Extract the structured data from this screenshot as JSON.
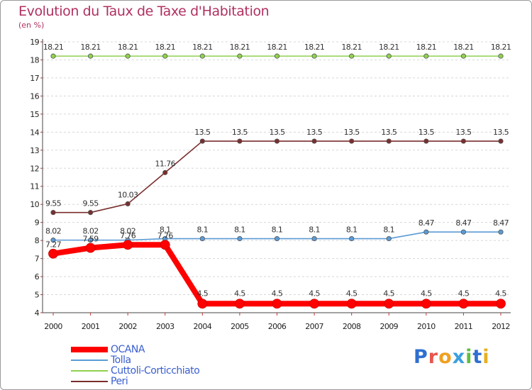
{
  "title": "Evolution du Taux de Taxe d'Habitation",
  "unit": "(en %)",
  "brand": "Proxiti",
  "chart_data": {
    "type": "line",
    "title": "Evolution du Taux de Taxe d'Habitation",
    "ylabel": "(en %)",
    "xlabel": "",
    "ylim": [
      4,
      19
    ],
    "yticks": [
      "4",
      "5",
      "6",
      "7",
      "8",
      "9",
      "10",
      "11",
      "12",
      "13",
      "14",
      "15",
      "16",
      "17",
      "18",
      "19"
    ],
    "x": [
      "2000",
      "2001",
      "2002",
      "2003",
      "2004",
      "2005",
      "2006",
      "2007",
      "2008",
      "2009",
      "2010",
      "2011",
      "2012"
    ],
    "grid": "horizontal-dashed",
    "legend_position": "bottom-left",
    "series": [
      {
        "name": "OCANA",
        "color": "#ff0000",
        "values": [
          7.27,
          7.59,
          7.76,
          7.76,
          4.5,
          4.5,
          4.5,
          4.5,
          4.5,
          4.5,
          4.5,
          4.5,
          4.5
        ],
        "labels": [
          "7.27",
          "7.59",
          "7.76",
          "7.76",
          "4.5",
          "4.5",
          "4.5",
          "4.5",
          "4.5",
          "4.5",
          "4.5",
          "4.5",
          "4.5"
        ]
      },
      {
        "name": "Tolla",
        "color": "#5b9bd5",
        "values": [
          8.02,
          8.02,
          8.02,
          8.1,
          8.1,
          8.1,
          8.1,
          8.1,
          8.1,
          8.1,
          8.47,
          8.47,
          8.47
        ],
        "labels": [
          "8.02",
          "8.02",
          "8.02",
          "8.1",
          "8.1",
          "8.1",
          "8.1",
          "8.1",
          "8.1",
          "8.1",
          "8.47",
          "8.47",
          "8.47"
        ]
      },
      {
        "name": "Cuttoli-Corticchiato",
        "color": "#8fd14f",
        "values": [
          18.21,
          18.21,
          18.21,
          18.21,
          18.21,
          18.21,
          18.21,
          18.21,
          18.21,
          18.21,
          18.21,
          18.21,
          18.21
        ],
        "labels": [
          "18.21",
          "18.21",
          "18.21",
          "18.21",
          "18.21",
          "18.21",
          "18.21",
          "18.21",
          "18.21",
          "18.21",
          "18.21",
          "18.21",
          "18.21"
        ]
      },
      {
        "name": "Peri",
        "color": "#7a2e2e",
        "values": [
          9.55,
          9.55,
          10.03,
          11.76,
          13.5,
          13.5,
          13.5,
          13.5,
          13.5,
          13.5,
          13.5,
          13.5,
          13.5
        ],
        "labels": [
          "9.55",
          "9.55",
          "10.03",
          "11.76",
          "13.5",
          "13.5",
          "13.5",
          "13.5",
          "13.5",
          "13.5",
          "13.5",
          "13.5",
          "13.5"
        ]
      }
    ]
  }
}
